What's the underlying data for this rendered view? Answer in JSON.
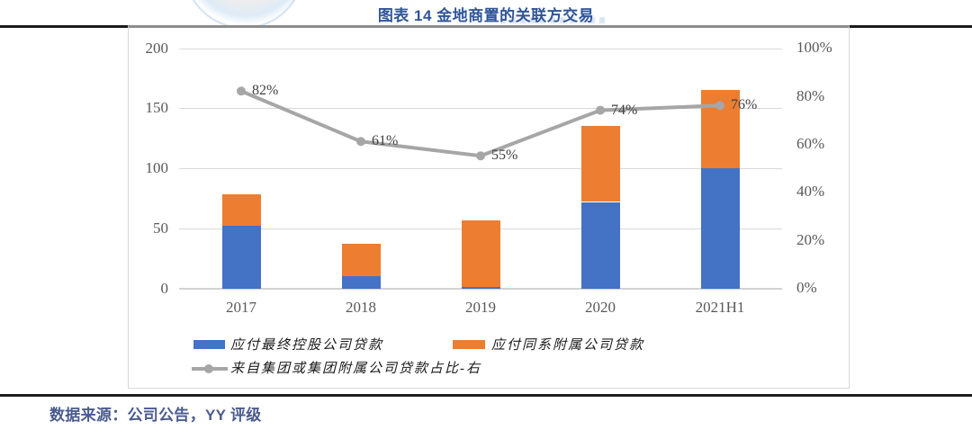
{
  "page": {
    "title": "图表 14 金地商置的关联方交易",
    "source_line": "数据来源：公司公告，YY 评级",
    "title_color": "#2F5597",
    "source_color": "#4A5B8F"
  },
  "chart_data": {
    "type": "bar",
    "subtype": "stacked-bars-with-line",
    "categories": [
      "2017",
      "2018",
      "2019",
      "2020",
      "2021H1"
    ],
    "series": [
      {
        "name": "应付最终控股公司贷款",
        "type": "bar",
        "color": "#4472C4",
        "axis": "left",
        "values": [
          52,
          10,
          1,
          72,
          100
        ]
      },
      {
        "name": "应付同系附属公司贷款",
        "type": "bar",
        "color": "#ED7D31",
        "axis": "left",
        "values": [
          26,
          27,
          56,
          63,
          65
        ]
      },
      {
        "name": "来自集团或集团附属公司贷款占比-右",
        "type": "line",
        "color": "#A6A6A6",
        "axis": "right",
        "values": [
          82,
          61,
          55,
          74,
          76
        ],
        "point_labels": [
          "82%",
          "61%",
          "55%",
          "74%",
          "76%"
        ]
      }
    ],
    "left_axis": {
      "min": 0,
      "max": 200,
      "tick_values": [
        200,
        150,
        100,
        50,
        0
      ],
      "tick_labels": [
        "200",
        "150",
        "100",
        "50",
        "0"
      ]
    },
    "right_axis": {
      "min": 0,
      "max": 100,
      "tick_values": [
        100,
        80,
        60,
        40,
        20,
        0
      ],
      "tick_labels": [
        "100%",
        "80%",
        "60%",
        "40%",
        "20%",
        "0%"
      ]
    },
    "grid": "horizontal, left-axis interval 50",
    "legend_position": "bottom",
    "colors": {
      "bar_blue": "#4472C4",
      "bar_orange": "#ED7D31",
      "line_gray": "#A6A6A6",
      "gridline": "#d9d9d9",
      "axis_text": "#595959",
      "point_label": "#404040"
    }
  }
}
